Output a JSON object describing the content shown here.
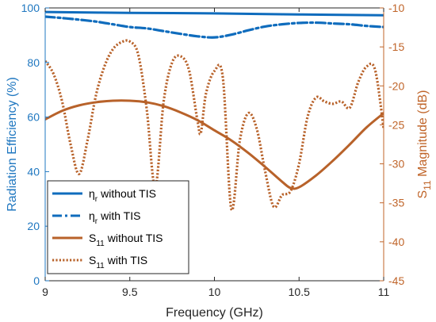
{
  "chart_data": {
    "type": "line",
    "title": "",
    "xlabel": "Frequency (GHz)",
    "ylabel_left": "Radiation Efficiency (%)",
    "ylabel_right": {
      "base": "S",
      "sub": "11",
      "tail": " Magnitude (dB)"
    },
    "xlim": [
      9,
      11
    ],
    "ylim_left": [
      0,
      100
    ],
    "ylim_right": [
      -45,
      -10
    ],
    "xticks": [
      "9",
      "9.5",
      "10",
      "10.5",
      "11"
    ],
    "yticks_left": [
      "0",
      "20",
      "40",
      "60",
      "80",
      "100"
    ],
    "yticks_right": [
      "-45",
      "-40",
      "-35",
      "-30",
      "-25",
      "-20",
      "-15",
      "-10"
    ],
    "grid": false,
    "legend_position": "lower-left",
    "colors": {
      "left_axis": "#1f77c0",
      "right_axis": "#c0652a",
      "efficiency": "#0f6cbd",
      "s11": "#b8622a"
    },
    "series": [
      {
        "name": "without TIS",
        "label_base": "η",
        "label_sub": "r",
        "axis": "left",
        "style": "solid",
        "x": [
          9.0,
          9.5,
          10.0,
          10.5,
          11.0
        ],
        "y": [
          98.5,
          98.2,
          98.0,
          97.6,
          97.3
        ]
      },
      {
        "name": "with TIS",
        "label_base": "η",
        "label_sub": "r",
        "axis": "left",
        "style": "dashdot",
        "x": [
          9.0,
          9.1,
          9.2,
          9.3,
          9.4,
          9.5,
          9.6,
          9.7,
          9.8,
          9.9,
          10.0,
          10.1,
          10.2,
          10.3,
          10.4,
          10.5,
          10.6,
          10.7,
          10.8,
          10.9,
          11.0
        ],
        "y": [
          96.8,
          96.3,
          95.7,
          95.0,
          94.0,
          93.0,
          92.5,
          91.5,
          90.5,
          89.6,
          89.2,
          90.2,
          91.8,
          93.2,
          94.0,
          94.5,
          94.6,
          94.3,
          94.0,
          93.4,
          93.0
        ]
      },
      {
        "name": "without TIS",
        "label_base": "S",
        "label_sub": "11",
        "axis": "right",
        "style": "solid",
        "x": [
          9.0,
          9.1,
          9.2,
          9.3,
          9.4,
          9.5,
          9.6,
          9.7,
          9.8,
          9.9,
          10.0,
          10.1,
          10.2,
          10.3,
          10.4,
          10.45,
          10.5,
          10.6,
          10.7,
          10.8,
          10.9,
          11.0
        ],
        "y": [
          -24.3,
          -23.2,
          -22.5,
          -22.1,
          -21.9,
          -21.9,
          -22.1,
          -22.6,
          -23.4,
          -24.4,
          -25.7,
          -27.0,
          -28.6,
          -30.4,
          -32.3,
          -33.1,
          -33.0,
          -31.5,
          -29.6,
          -27.5,
          -25.3,
          -23.5
        ]
      },
      {
        "name": "with TIS",
        "label_base": "S",
        "label_sub": "11",
        "axis": "right",
        "style": "dotted",
        "x": [
          9.0,
          9.05,
          9.1,
          9.15,
          9.2,
          9.25,
          9.3,
          9.35,
          9.4,
          9.45,
          9.5,
          9.55,
          9.6,
          9.65,
          9.7,
          9.75,
          9.8,
          9.85,
          9.9,
          9.92,
          9.95,
          10.0,
          10.05,
          10.1,
          10.15,
          10.2,
          10.25,
          10.3,
          10.35,
          10.4,
          10.45,
          10.5,
          10.55,
          10.6,
          10.65,
          10.7,
          10.75,
          10.8,
          10.85,
          10.9,
          10.95,
          11.0
        ],
        "y": [
          -16.8,
          -18.5,
          -22.0,
          -27.5,
          -31.3,
          -27.0,
          -21.2,
          -17.5,
          -15.3,
          -14.4,
          -14.3,
          -16.0,
          -23.0,
          -33.0,
          -22.0,
          -17.0,
          -16.2,
          -18.0,
          -24.5,
          -26.0,
          -21.0,
          -18.1,
          -19.0,
          -35.8,
          -27.0,
          -23.5,
          -25.5,
          -31.0,
          -35.5,
          -34.0,
          -33.5,
          -30.0,
          -24.0,
          -21.5,
          -22.0,
          -22.3,
          -22.0,
          -22.8,
          -19.5,
          -17.5,
          -18.0,
          -25.5
        ]
      }
    ]
  }
}
